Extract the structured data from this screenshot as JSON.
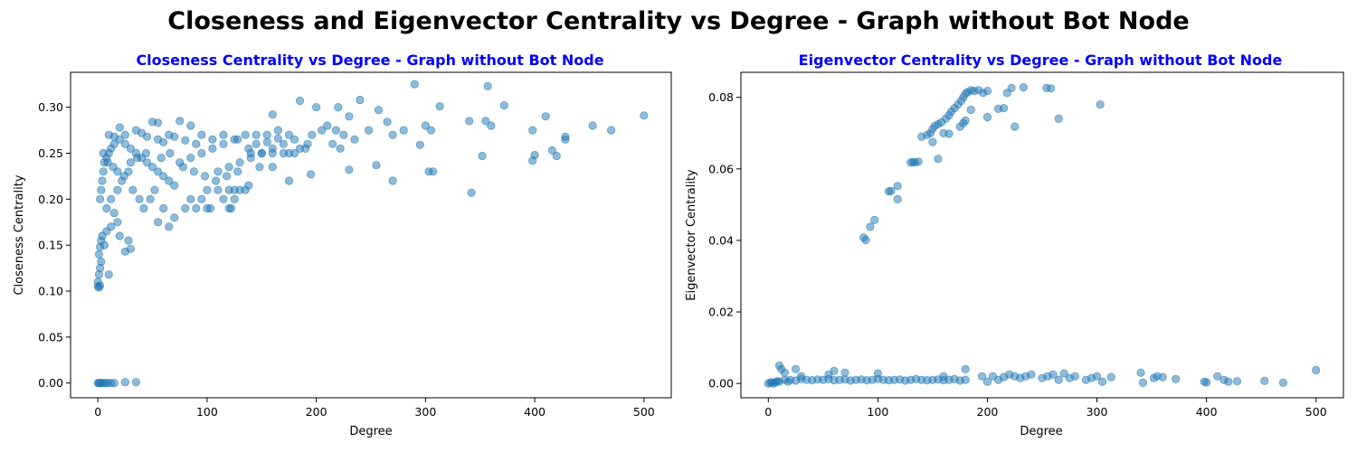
{
  "suptitle": "Closeness and Eigenvector Centrality vs Degree - Graph without Bot Node",
  "colors": {
    "points": "#1f77b4",
    "title": "#0000ff"
  },
  "chart_data": [
    {
      "type": "scatter",
      "title": "Closeness Centrality vs Degree - Graph without Bot Node",
      "xlabel": "Degree",
      "ylabel": "Closeness Centrality",
      "xlim": [
        -25,
        525
      ],
      "ylim": [
        -0.016,
        0.338
      ],
      "xticks": [
        0,
        100,
        200,
        300,
        400,
        500
      ],
      "xtick_labels": [
        "0",
        "100",
        "200",
        "300",
        "400",
        "500"
      ],
      "yticks": [
        0.0,
        0.05,
        0.1,
        0.15,
        0.2,
        0.25,
        0.3
      ],
      "ytick_labels": [
        "0.00",
        "0.05",
        "0.10",
        "0.15",
        "0.20",
        "0.25",
        "0.30"
      ],
      "grid": false,
      "points": [
        [
          0,
          0.0
        ],
        [
          1,
          0.0
        ],
        [
          2,
          0.0
        ],
        [
          3,
          0.0
        ],
        [
          5,
          0.0
        ],
        [
          7,
          0.0
        ],
        [
          9,
          0.0
        ],
        [
          12,
          0.0
        ],
        [
          15,
          0.0
        ],
        [
          25,
          0.001
        ],
        [
          35,
          0.001
        ],
        [
          0,
          0.105
        ],
        [
          1,
          0.104
        ],
        [
          2,
          0.106
        ],
        [
          0,
          0.11
        ],
        [
          1,
          0.118
        ],
        [
          2,
          0.125
        ],
        [
          3,
          0.132
        ],
        [
          1,
          0.14
        ],
        [
          2,
          0.148
        ],
        [
          3,
          0.155
        ],
        [
          4,
          0.16
        ],
        [
          10,
          0.118
        ],
        [
          6,
          0.15
        ],
        [
          8,
          0.165
        ],
        [
          12,
          0.17
        ],
        [
          20,
          0.16
        ],
        [
          25,
          0.143
        ],
        [
          30,
          0.146
        ],
        [
          28,
          0.155
        ],
        [
          18,
          0.175
        ],
        [
          15,
          0.185
        ],
        [
          2,
          0.2
        ],
        [
          3,
          0.21
        ],
        [
          4,
          0.22
        ],
        [
          5,
          0.23
        ],
        [
          6,
          0.24
        ],
        [
          8,
          0.245
        ],
        [
          10,
          0.25
        ],
        [
          12,
          0.255
        ],
        [
          15,
          0.26
        ],
        [
          20,
          0.265
        ],
        [
          25,
          0.26
        ],
        [
          30,
          0.255
        ],
        [
          35,
          0.25
        ],
        [
          40,
          0.245
        ],
        [
          45,
          0.24
        ],
        [
          50,
          0.235
        ],
        [
          55,
          0.23
        ],
        [
          60,
          0.225
        ],
        [
          65,
          0.22
        ],
        [
          70,
          0.215
        ],
        [
          8,
          0.19
        ],
        [
          12,
          0.2
        ],
        [
          18,
          0.21
        ],
        [
          22,
          0.22
        ],
        [
          28,
          0.23
        ],
        [
          32,
          0.21
        ],
        [
          38,
          0.2
        ],
        [
          42,
          0.19
        ],
        [
          48,
          0.2
        ],
        [
          52,
          0.21
        ],
        [
          20,
          0.278
        ],
        [
          35,
          0.275
        ],
        [
          50,
          0.284
        ],
        [
          55,
          0.283
        ],
        [
          75,
          0.285
        ],
        [
          85,
          0.28
        ],
        [
          65,
          0.27
        ],
        [
          95,
          0.27
        ],
        [
          105,
          0.265
        ],
        [
          115,
          0.27
        ],
        [
          60,
          0.19
        ],
        [
          70,
          0.18
        ],
        [
          65,
          0.17
        ],
        [
          55,
          0.175
        ],
        [
          80,
          0.19
        ],
        [
          90,
          0.19
        ],
        [
          100,
          0.19
        ],
        [
          85,
          0.2
        ],
        [
          95,
          0.2
        ],
        [
          103,
          0.19
        ],
        [
          110,
          0.21
        ],
        [
          120,
          0.21
        ],
        [
          125,
          0.21
        ],
        [
          130,
          0.21
        ],
        [
          135,
          0.21
        ],
        [
          115,
          0.2
        ],
        [
          125,
          0.2
        ],
        [
          122,
          0.19
        ],
        [
          120,
          0.19
        ],
        [
          100,
          0.21
        ],
        [
          75,
          0.24
        ],
        [
          85,
          0.245
        ],
        [
          95,
          0.25
        ],
        [
          105,
          0.255
        ],
        [
          115,
          0.26
        ],
        [
          125,
          0.265
        ],
        [
          135,
          0.27
        ],
        [
          145,
          0.27
        ],
        [
          155,
          0.27
        ],
        [
          165,
          0.275
        ],
        [
          110,
          0.23
        ],
        [
          120,
          0.235
        ],
        [
          130,
          0.24
        ],
        [
          140,
          0.245
        ],
        [
          150,
          0.25
        ],
        [
          160,
          0.255
        ],
        [
          170,
          0.26
        ],
        [
          180,
          0.265
        ],
        [
          185,
          0.255
        ],
        [
          175,
          0.25
        ],
        [
          140,
          0.25
        ],
        [
          150,
          0.25
        ],
        [
          160,
          0.25
        ],
        [
          170,
          0.25
        ],
        [
          180,
          0.25
        ],
        [
          190,
          0.255
        ],
        [
          145,
          0.26
        ],
        [
          155,
          0.262
        ],
        [
          165,
          0.266
        ],
        [
          175,
          0.27
        ],
        [
          160,
          0.292
        ],
        [
          185,
          0.307
        ],
        [
          200,
          0.3
        ],
        [
          220,
          0.3
        ],
        [
          230,
          0.29
        ],
        [
          240,
          0.308
        ],
        [
          257,
          0.297
        ],
        [
          265,
          0.284
        ],
        [
          270,
          0.27
        ],
        [
          280,
          0.275
        ],
        [
          192,
          0.26
        ],
        [
          196,
          0.27
        ],
        [
          205,
          0.275
        ],
        [
          210,
          0.28
        ],
        [
          215,
          0.26
        ],
        [
          218,
          0.275
        ],
        [
          222,
          0.255
        ],
        [
          225,
          0.27
        ],
        [
          235,
          0.265
        ],
        [
          248,
          0.275
        ],
        [
          195,
          0.227
        ],
        [
          175,
          0.22
        ],
        [
          160,
          0.235
        ],
        [
          230,
          0.232
        ],
        [
          255,
          0.237
        ],
        [
          270,
          0.22
        ],
        [
          290,
          0.325
        ],
        [
          300,
          0.28
        ],
        [
          305,
          0.275
        ],
        [
          313,
          0.301
        ],
        [
          295,
          0.259
        ],
        [
          303,
          0.23
        ],
        [
          307,
          0.23
        ],
        [
          340,
          0.285
        ],
        [
          342,
          0.207
        ],
        [
          352,
          0.247
        ],
        [
          355,
          0.285
        ],
        [
          357,
          0.323
        ],
        [
          360,
          0.28
        ],
        [
          372,
          0.302
        ],
        [
          398,
          0.275
        ],
        [
          398,
          0.242
        ],
        [
          400,
          0.248
        ],
        [
          410,
          0.29
        ],
        [
          416,
          0.253
        ],
        [
          420,
          0.247
        ],
        [
          428,
          0.265
        ],
        [
          428,
          0.268
        ],
        [
          453,
          0.28
        ],
        [
          470,
          0.275
        ],
        [
          500,
          0.291
        ],
        [
          10,
          0.27
        ],
        [
          15,
          0.268
        ],
        [
          25,
          0.27
        ],
        [
          40,
          0.272
        ],
        [
          45,
          0.268
        ],
        [
          55,
          0.265
        ],
        [
          60,
          0.262
        ],
        [
          70,
          0.268
        ],
        [
          80,
          0.264
        ],
        [
          90,
          0.26
        ],
        [
          5,
          0.25
        ],
        [
          9,
          0.24
        ],
        [
          14,
          0.235
        ],
        [
          18,
          0.23
        ],
        [
          24,
          0.225
        ],
        [
          30,
          0.24
        ],
        [
          36,
          0.245
        ],
        [
          44,
          0.25
        ],
        [
          58,
          0.245
        ],
        [
          66,
          0.25
        ],
        [
          78,
          0.235
        ],
        [
          88,
          0.23
        ],
        [
          98,
          0.225
        ],
        [
          108,
          0.22
        ],
        [
          118,
          0.225
        ],
        [
          128,
          0.23
        ],
        [
          138,
          0.215
        ],
        [
          128,
          0.265
        ],
        [
          138,
          0.255
        ],
        [
          148,
          0.235
        ]
      ]
    },
    {
      "type": "scatter",
      "title": "Eigenvector Centrality vs Degree - Graph without Bot Node",
      "xlabel": "Degree",
      "ylabel": "Eigenvector Centrality",
      "xlim": [
        -25,
        525
      ],
      "ylim": [
        -0.004,
        0.087
      ],
      "xticks": [
        0,
        100,
        200,
        300,
        400,
        500
      ],
      "xtick_labels": [
        "0",
        "100",
        "200",
        "300",
        "400",
        "500"
      ],
      "yticks": [
        0.0,
        0.02,
        0.04,
        0.06,
        0.08
      ],
      "ytick_labels": [
        "0.00",
        "0.02",
        "0.04",
        "0.06",
        "0.08"
      ],
      "grid": false,
      "points": [
        [
          0,
          0.0
        ],
        [
          5,
          0.0
        ],
        [
          10,
          0.0005
        ],
        [
          15,
          0.001
        ],
        [
          20,
          0.001
        ],
        [
          25,
          0.0008
        ],
        [
          30,
          0.0012
        ],
        [
          35,
          0.001
        ],
        [
          40,
          0.0009
        ],
        [
          45,
          0.0011
        ],
        [
          50,
          0.001
        ],
        [
          55,
          0.0012
        ],
        [
          60,
          0.0009
        ],
        [
          65,
          0.001
        ],
        [
          70,
          0.0011
        ],
        [
          75,
          0.0008
        ],
        [
          80,
          0.001
        ],
        [
          85,
          0.0011
        ],
        [
          90,
          0.0009
        ],
        [
          95,
          0.001
        ],
        [
          100,
          0.0012
        ],
        [
          105,
          0.001
        ],
        [
          110,
          0.0009
        ],
        [
          115,
          0.001
        ],
        [
          120,
          0.0011
        ],
        [
          125,
          0.0008
        ],
        [
          130,
          0.001
        ],
        [
          135,
          0.0012
        ],
        [
          140,
          0.001
        ],
        [
          145,
          0.0009
        ],
        [
          150,
          0.001
        ],
        [
          155,
          0.0011
        ],
        [
          160,
          0.0009
        ],
        [
          165,
          0.001
        ],
        [
          170,
          0.0012
        ],
        [
          175,
          0.0008
        ],
        [
          180,
          0.001
        ],
        [
          10,
          0.005
        ],
        [
          12,
          0.004
        ],
        [
          25,
          0.004
        ],
        [
          15,
          0.003
        ],
        [
          30,
          0.002
        ],
        [
          55,
          0.0025
        ],
        [
          60,
          0.0035
        ],
        [
          70,
          0.003
        ],
        [
          100,
          0.0028
        ],
        [
          160,
          0.002
        ],
        [
          180,
          0.004
        ],
        [
          195,
          0.002
        ],
        [
          200,
          0.0005
        ],
        [
          205,
          0.002
        ],
        [
          210,
          0.001
        ],
        [
          215,
          0.0018
        ],
        [
          220,
          0.0025
        ],
        [
          225,
          0.002
        ],
        [
          230,
          0.0015
        ],
        [
          235,
          0.002
        ],
        [
          240,
          0.0025
        ],
        [
          250,
          0.0015
        ],
        [
          255,
          0.002
        ],
        [
          260,
          0.0025
        ],
        [
          265,
          0.001
        ],
        [
          270,
          0.0028
        ],
        [
          275,
          0.0015
        ],
        [
          280,
          0.002
        ],
        [
          290,
          0.001
        ],
        [
          295,
          0.0015
        ],
        [
          300,
          0.002
        ],
        [
          305,
          0.0005
        ],
        [
          313,
          0.0018
        ],
        [
          340,
          0.003
        ],
        [
          342,
          0.0002
        ],
        [
          352,
          0.0015
        ],
        [
          355,
          0.002
        ],
        [
          360,
          0.0018
        ],
        [
          372,
          0.0012
        ],
        [
          398,
          0.0005
        ],
        [
          400,
          0.0003
        ],
        [
          410,
          0.002
        ],
        [
          416,
          0.001
        ],
        [
          420,
          0.0005
        ],
        [
          428,
          0.0006
        ],
        [
          453,
          0.0007
        ],
        [
          470,
          0.0002
        ],
        [
          500,
          0.0037
        ],
        [
          2,
          0.0002
        ],
        [
          3,
          0.0003
        ],
        [
          7,
          0.0004
        ],
        [
          8,
          0.0006
        ],
        [
          18,
          0.0005
        ],
        [
          87,
          0.0408
        ],
        [
          89,
          0.0401
        ],
        [
          93,
          0.0438
        ],
        [
          97,
          0.0457
        ],
        [
          110,
          0.0537
        ],
        [
          112,
          0.0538
        ],
        [
          118,
          0.0552
        ],
        [
          118,
          0.0515
        ],
        [
          130,
          0.0618
        ],
        [
          132,
          0.0619
        ],
        [
          134,
          0.0618
        ],
        [
          137,
          0.062
        ],
        [
          155,
          0.0628
        ],
        [
          140,
          0.069
        ],
        [
          145,
          0.0695
        ],
        [
          148,
          0.07
        ],
        [
          150,
          0.0712
        ],
        [
          152,
          0.072
        ],
        [
          155,
          0.0725
        ],
        [
          158,
          0.073
        ],
        [
          162,
          0.074
        ],
        [
          165,
          0.075
        ],
        [
          167,
          0.076
        ],
        [
          170,
          0.077
        ],
        [
          173,
          0.078
        ],
        [
          176,
          0.079
        ],
        [
          178,
          0.08
        ],
        [
          180,
          0.081
        ],
        [
          182,
          0.0815
        ],
        [
          185,
          0.082
        ],
        [
          188,
          0.0818
        ],
        [
          192,
          0.082
        ],
        [
          196,
          0.0812
        ],
        [
          150,
          0.0675
        ],
        [
          160,
          0.07
        ],
        [
          165,
          0.0698
        ],
        [
          175,
          0.0718
        ],
        [
          178,
          0.0728
        ],
        [
          180,
          0.0735
        ],
        [
          185,
          0.0765
        ],
        [
          200,
          0.0745
        ],
        [
          200,
          0.0818
        ],
        [
          210,
          0.0768
        ],
        [
          215,
          0.077
        ],
        [
          218,
          0.0812
        ],
        [
          222,
          0.0826
        ],
        [
          225,
          0.0718
        ],
        [
          233,
          0.0828
        ],
        [
          254,
          0.0826
        ],
        [
          258,
          0.0825
        ],
        [
          265,
          0.074
        ],
        [
          303,
          0.078
        ]
      ]
    }
  ]
}
